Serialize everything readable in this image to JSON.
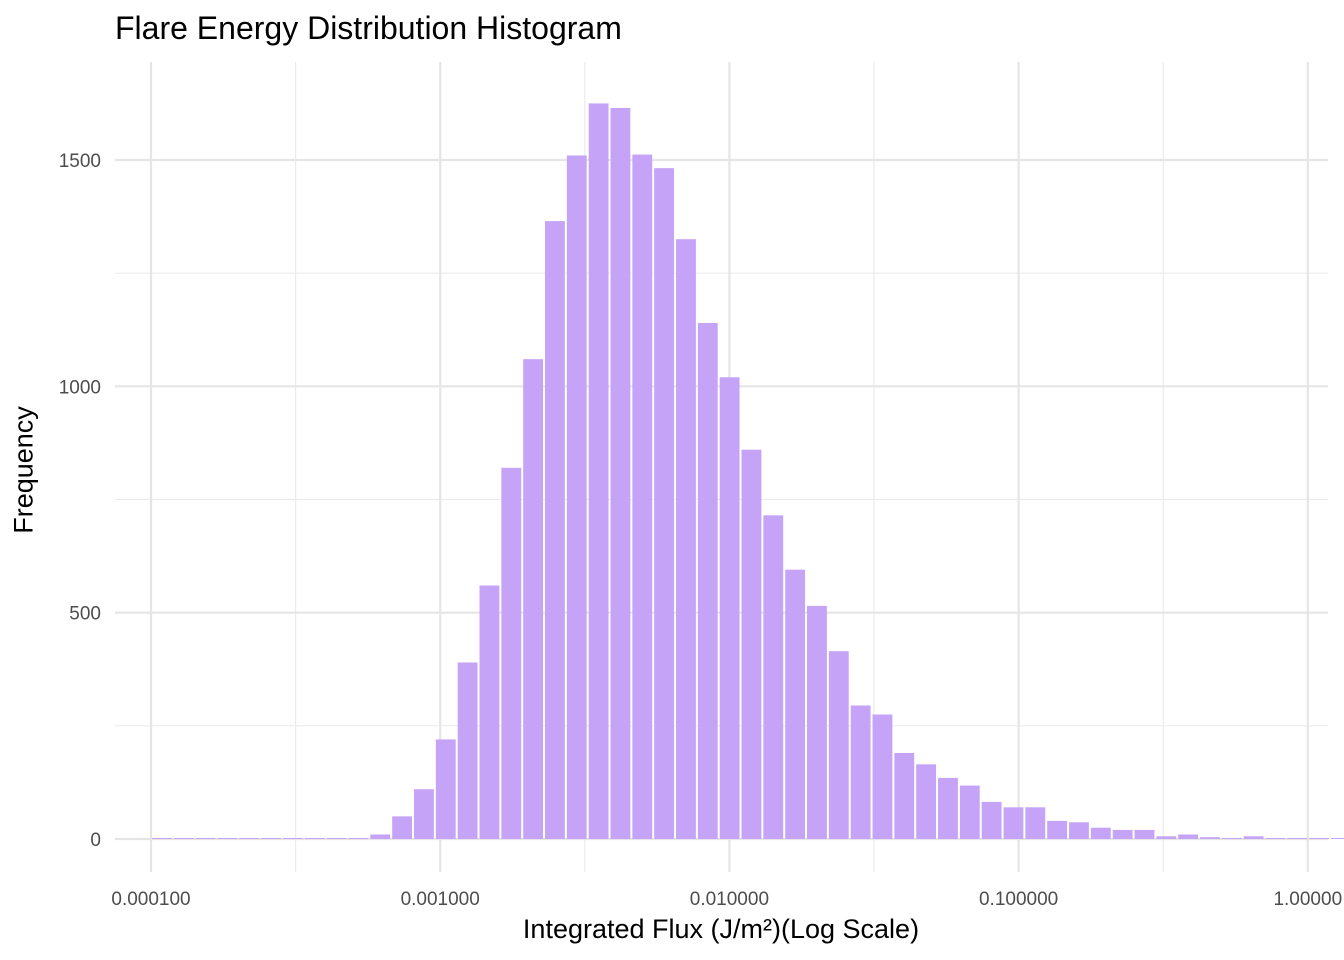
{
  "chart_data": {
    "type": "bar",
    "title": "Flare Energy Distribution Histogram",
    "xlabel": "Integrated Flux (J/m²)(Log Scale)",
    "ylabel": "Frequency",
    "x_scale": "log10",
    "x_ticks": [
      0.0001,
      0.001,
      0.01,
      0.1,
      1
    ],
    "x_tick_labels": [
      "0.000100",
      "0.001000",
      "0.010000",
      "0.100000",
      "1.00000"
    ],
    "y_ticks": [
      0,
      500,
      1000,
      1500
    ],
    "y_tick_labels": [
      "0",
      "500",
      "1000",
      "1500"
    ],
    "ylim": [
      0,
      1700
    ],
    "grid": true,
    "legend": "none",
    "bar_color": "#c5a3f7",
    "bin_log10_start": -4.0,
    "bin_log10_width": 0.0755,
    "values": [
      0,
      0,
      0,
      0,
      0,
      0,
      0,
      0,
      0,
      0,
      10,
      50,
      110,
      220,
      390,
      560,
      820,
      1060,
      1365,
      1510,
      1625,
      1615,
      1512,
      1482,
      1325,
      1140,
      1020,
      860,
      715,
      595,
      515,
      415,
      295,
      275,
      190,
      165,
      135,
      118,
      82,
      70,
      70,
      40,
      37,
      25,
      20,
      20,
      6,
      10,
      4,
      2,
      6,
      2,
      2,
      0,
      0,
      0,
      0
    ]
  }
}
